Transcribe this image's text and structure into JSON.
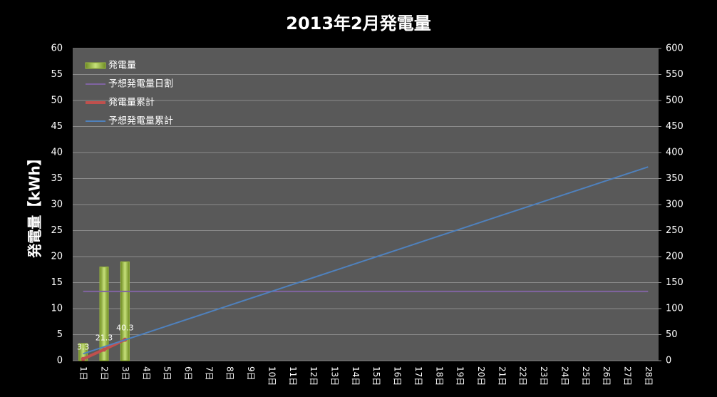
{
  "chart_data": {
    "type": "combo",
    "title": "2013年2月発電量",
    "y_label": "発電量【kWh】",
    "categories": [
      "1日",
      "2日",
      "3日",
      "4日",
      "5日",
      "6日",
      "7日",
      "8日",
      "9日",
      "10日",
      "11日",
      "12日",
      "13日",
      "14日",
      "15日",
      "16日",
      "17日",
      "18日",
      "19日",
      "20日",
      "21日",
      "22日",
      "23日",
      "24日",
      "25日",
      "26日",
      "27日",
      "28日"
    ],
    "series": [
      {
        "name": "発電量",
        "kind": "bar",
        "color": "#9bbb3c",
        "values": [
          3.3,
          18,
          19,
          null,
          null,
          null,
          null,
          null,
          null,
          null,
          null,
          null,
          null,
          null,
          null,
          null,
          null,
          null,
          null,
          null,
          null,
          null,
          null,
          null,
          null,
          null,
          null,
          null
        ]
      },
      {
        "name": "予想発電量日割",
        "kind": "line",
        "color": "#8064a2",
        "values": [
          13.3,
          13.3,
          13.3,
          13.3,
          13.3,
          13.3,
          13.3,
          13.3,
          13.3,
          13.3,
          13.3,
          13.3,
          13.3,
          13.3,
          13.3,
          13.3,
          13.3,
          13.3,
          13.3,
          13.3,
          13.3,
          13.3,
          13.3,
          13.3,
          13.3,
          13.3,
          13.3,
          13.3
        ]
      },
      {
        "name": "発電量累計",
        "kind": "line",
        "axis": "y2",
        "color": "#c0504d",
        "markers": true,
        "data_labels": true,
        "values": [
          3.3,
          21.3,
          40.3,
          null,
          null,
          null,
          null,
          null,
          null,
          null,
          null,
          null,
          null,
          null,
          null,
          null,
          null,
          null,
          null,
          null,
          null,
          null,
          null,
          null,
          null,
          null,
          null,
          null
        ]
      },
      {
        "name": "予想発電量累計",
        "kind": "line",
        "axis": "y2",
        "color": "#4f81bd",
        "values": [
          13.3,
          26.6,
          39.9,
          53.2,
          66.5,
          79.8,
          93.1,
          106.4,
          119.7,
          133,
          146.3,
          159.6,
          172.9,
          186.2,
          199.5,
          212.8,
          226.1,
          239.4,
          252.7,
          266,
          279.3,
          292.6,
          305.9,
          319.2,
          332.5,
          345.8,
          359.1,
          372.4
        ]
      }
    ],
    "ylim": [
      0,
      60
    ],
    "yticks": [
      0,
      5,
      10,
      15,
      20,
      25,
      30,
      35,
      40,
      45,
      50,
      55,
      60
    ],
    "y2lim": [
      0,
      600
    ],
    "y2ticks": [
      0,
      50,
      100,
      150,
      200,
      250,
      300,
      350,
      400,
      450,
      500,
      550,
      600
    ],
    "grid": true,
    "legend": "top-left"
  }
}
